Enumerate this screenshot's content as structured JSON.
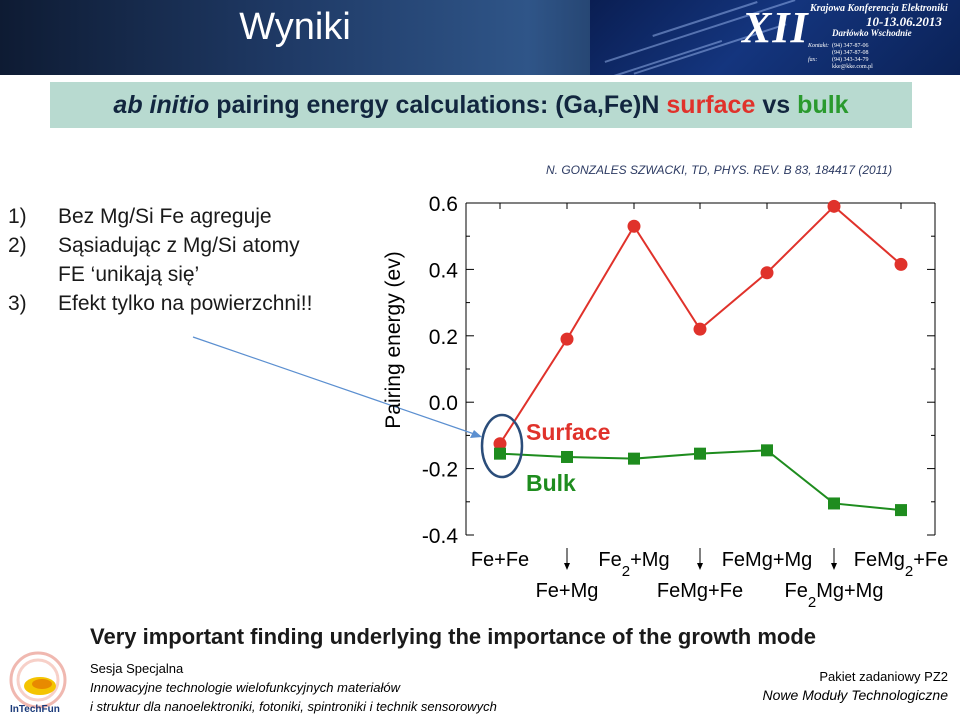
{
  "header": {
    "title": "Wyniki",
    "conference": {
      "roman": "XII",
      "name": "Krajowa Konferencja Elektroniki",
      "dates": "10-13.06.2013",
      "place": "Darłówko Wschodnie",
      "contacts": [
        {
          "key": "Kontakt:",
          "value": "(94) 347-87-06"
        },
        {
          "key": "",
          "value": "(94) 347-87-08"
        },
        {
          "key": "fax:",
          "value": "(94) 343-34-79"
        },
        {
          "key": "",
          "value": "kke@kke.com.pl"
        }
      ]
    }
  },
  "subtitle": {
    "part1": "ab initio",
    "part2": "pairing energy calculations: (Ga,Fe)N",
    "part3": "surface",
    "part4": "vs",
    "part5": "bulk",
    "colors": {
      "bg": "#b8dad0",
      "surface": "#e0322b",
      "bulk": "#2a9a2e"
    }
  },
  "findings": [
    {
      "num": "1)",
      "text": "Bez Mg/Si Fe agreguje"
    },
    {
      "num": "2)",
      "text": "Sąsiadując z Mg/Si atomy"
    },
    {
      "num": "",
      "text": "FE ‘unikają się’"
    },
    {
      "num": "3)",
      "text": "Efekt tylko na powierzchni!!"
    }
  ],
  "citation": "N. GONZALES SZWACKI, TD, PHYS. REV. B 83, 184417 (2011)",
  "chart_data": {
    "type": "line",
    "ylabel": "Pairing energy  (ev)",
    "ylim": [
      -0.4,
      0.6
    ],
    "yticks": [
      -0.4,
      -0.2,
      0.0,
      0.2,
      0.4,
      0.6
    ],
    "ytick_labels": [
      "-0.4",
      "-0.2",
      "0.0",
      "0.2",
      "0.4",
      "0.6"
    ],
    "categories": [
      {
        "main": "Fe+Fe",
        "sub": ""
      },
      {
        "main": "Fe+Mg",
        "sub": ""
      },
      {
        "main": "Fe",
        "sub": "2",
        "suffix": "+Mg"
      },
      {
        "main": "FeMg+Fe",
        "sub": ""
      },
      {
        "main": "FeMg+Mg",
        "sub": ""
      },
      {
        "main": "Fe",
        "sub": "2",
        "suffix": "Mg+Mg"
      },
      {
        "main": "FeMg",
        "sub": "2",
        "suffix": "+Fe"
      }
    ],
    "series": [
      {
        "name": "Surface",
        "color": "#e0322b",
        "marker": "circle",
        "values": [
          -0.125,
          0.19,
          0.53,
          0.22,
          0.39,
          0.59,
          0.415
        ]
      },
      {
        "name": "Bulk",
        "color": "#1e8c1e",
        "marker": "square",
        "values": [
          -0.155,
          -0.165,
          -0.17,
          -0.155,
          -0.145,
          -0.305,
          -0.325
        ]
      }
    ],
    "grid": false,
    "legend": "inline-labels"
  },
  "finding_main": "Very important finding underlying the importance of the growth mode",
  "footer": {
    "left": [
      "Sesja Specjalna",
      "Innowacyjne technologie wielofunkcyjnych materiałów",
      "i struktur dla nanoelektroniki, fotoniki, spintroniki i technik sensorowych"
    ],
    "right_line1": "Pakiet zadaniowy  PZ2",
    "right_line2": "Nowe Moduły Technologiczne",
    "logo_text": "InTechFun"
  }
}
